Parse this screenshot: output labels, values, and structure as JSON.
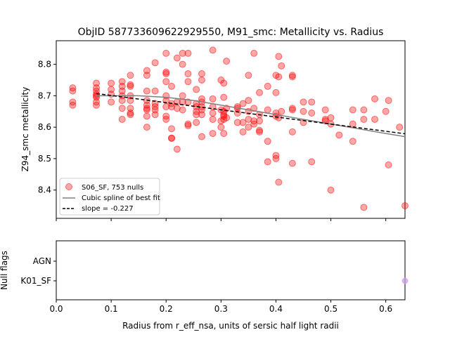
{
  "title": "ObjID 587733609622929550, M91_smc: Metallicity vs. Radius",
  "colors": {
    "scatter": "#ff0000",
    "spline": "#808080",
    "fit": "#000000",
    "null_point": "#c8a2e6"
  },
  "chart_data": [
    {
      "type": "scatter",
      "xlabel": "",
      "ylabel": "Z94_smc metallicity",
      "xlim": [
        0.0,
        0.635
      ],
      "ylim": [
        8.31,
        8.875
      ],
      "yticks": [
        8.4,
        8.5,
        8.6,
        8.7,
        8.8
      ],
      "ytick_labels": [
        "8.4",
        "8.5",
        "8.6",
        "8.7",
        "8.8"
      ],
      "legend": {
        "placement": "lower-left",
        "entries": [
          "S06_SF, 753 nulls",
          "Cubic spline of best fit",
          "slope = -0.227"
        ]
      },
      "series": [
        {
          "name": "S06_SF, 753 nulls",
          "style": "points",
          "points": [
            [
              0.03,
              8.725
            ],
            [
              0.03,
              8.715
            ],
            [
              0.03,
              8.68
            ],
            [
              0.03,
              8.67
            ],
            [
              0.073,
              8.74
            ],
            [
              0.073,
              8.725
            ],
            [
              0.073,
              8.715
            ],
            [
              0.073,
              8.705
            ],
            [
              0.073,
              8.7
            ],
            [
              0.073,
              8.695
            ],
            [
              0.073,
              8.68
            ],
            [
              0.073,
              8.67
            ],
            [
              0.1,
              8.74
            ],
            [
              0.1,
              8.72
            ],
            [
              0.1,
              8.705
            ],
            [
              0.1,
              8.68
            ],
            [
              0.12,
              8.745
            ],
            [
              0.12,
              8.73
            ],
            [
              0.12,
              8.715
            ],
            [
              0.12,
              8.7
            ],
            [
              0.12,
              8.685
            ],
            [
              0.12,
              8.66
            ],
            [
              0.12,
              8.625
            ],
            [
              0.135,
              8.765
            ],
            [
              0.135,
              8.735
            ],
            [
              0.135,
              8.73
            ],
            [
              0.135,
              8.7
            ],
            [
              0.135,
              8.685
            ],
            [
              0.135,
              8.66
            ],
            [
              0.135,
              8.645
            ],
            [
              0.135,
              8.64
            ],
            [
              0.165,
              8.78
            ],
            [
              0.165,
              8.765
            ],
            [
              0.165,
              8.715
            ],
            [
              0.165,
              8.685
            ],
            [
              0.165,
              8.67
            ],
            [
              0.165,
              8.66
            ],
            [
              0.165,
              8.655
            ],
            [
              0.165,
              8.635
            ],
            [
              0.165,
              8.6
            ],
            [
              0.18,
              8.805
            ],
            [
              0.18,
              8.715
            ],
            [
              0.18,
              8.675
            ],
            [
              0.18,
              8.665
            ],
            [
              0.18,
              8.655
            ],
            [
              0.18,
              8.64
            ],
            [
              0.2,
              8.835
            ],
            [
              0.2,
              8.775
            ],
            [
              0.2,
              8.77
            ],
            [
              0.2,
              8.745
            ],
            [
              0.2,
              8.7
            ],
            [
              0.2,
              8.685
            ],
            [
              0.2,
              8.665
            ],
            [
              0.2,
              8.635
            ],
            [
              0.2,
              8.625
            ],
            [
              0.21,
              8.73
            ],
            [
              0.21,
              8.675
            ],
            [
              0.21,
              8.665
            ],
            [
              0.21,
              8.595
            ],
            [
              0.21,
              8.565
            ],
            [
              0.21,
              8.565
            ],
            [
              0.22,
              8.82
            ],
            [
              0.22,
              8.68
            ],
            [
              0.22,
              8.66
            ],
            [
              0.22,
              8.53
            ],
            [
              0.23,
              8.835
            ],
            [
              0.23,
              8.8
            ],
            [
              0.23,
              8.7
            ],
            [
              0.23,
              8.68
            ],
            [
              0.23,
              8.655
            ],
            [
              0.24,
              8.835
            ],
            [
              0.24,
              8.77
            ],
            [
              0.24,
              8.745
            ],
            [
              0.24,
              8.68
            ],
            [
              0.24,
              8.61
            ],
            [
              0.24,
              8.605
            ],
            [
              0.255,
              8.72
            ],
            [
              0.255,
              8.675
            ],
            [
              0.255,
              8.665
            ],
            [
              0.255,
              8.65
            ],
            [
              0.255,
              8.64
            ],
            [
              0.255,
              8.615
            ],
            [
              0.265,
              8.77
            ],
            [
              0.265,
              8.75
            ],
            [
              0.265,
              8.69
            ],
            [
              0.265,
              8.68
            ],
            [
              0.265,
              8.665
            ],
            [
              0.265,
              8.655
            ],
            [
              0.265,
              8.64
            ],
            [
              0.265,
              8.57
            ],
            [
              0.285,
              8.845
            ],
            [
              0.285,
              8.69
            ],
            [
              0.285,
              8.665
            ],
            [
              0.285,
              8.645
            ],
            [
              0.285,
              8.625
            ],
            [
              0.285,
              8.58
            ],
            [
              0.3,
              8.75
            ],
            [
              0.3,
              8.655
            ],
            [
              0.3,
              8.62
            ],
            [
              0.3,
              8.6
            ],
            [
              0.305,
              8.74
            ],
            [
              0.305,
              8.695
            ],
            [
              0.305,
              8.65
            ],
            [
              0.305,
              8.64
            ],
            [
              0.305,
              8.635
            ],
            [
              0.305,
              8.625
            ],
            [
              0.305,
              8.58
            ],
            [
              0.31,
              8.81
            ],
            [
              0.31,
              8.66
            ],
            [
              0.31,
              8.63
            ],
            [
              0.33,
              8.665
            ],
            [
              0.33,
              8.66
            ],
            [
              0.33,
              8.645
            ],
            [
              0.33,
              8.615
            ],
            [
              0.34,
              8.675
            ],
            [
              0.34,
              8.615
            ],
            [
              0.34,
              8.585
            ],
            [
              0.35,
              8.765
            ],
            [
              0.35,
              8.685
            ],
            [
              0.35,
              8.65
            ],
            [
              0.35,
              8.625
            ],
            [
              0.35,
              8.6
            ],
            [
              0.36,
              8.835
            ],
            [
              0.36,
              8.66
            ],
            [
              0.36,
              8.62
            ],
            [
              0.36,
              8.61
            ],
            [
              0.37,
              8.71
            ],
            [
              0.37,
              8.64
            ],
            [
              0.37,
              8.62
            ],
            [
              0.37,
              8.59
            ],
            [
              0.37,
              8.585
            ],
            [
              0.385,
              8.73
            ],
            [
              0.385,
              8.655
            ],
            [
              0.385,
              8.555
            ],
            [
              0.385,
              8.49
            ],
            [
              0.4,
              8.765
            ],
            [
              0.4,
              8.71
            ],
            [
              0.4,
              8.645
            ],
            [
              0.4,
              8.635
            ],
            [
              0.4,
              8.51
            ],
            [
              0.4,
              8.5
            ],
            [
              0.405,
              8.825
            ],
            [
              0.405,
              8.76
            ],
            [
              0.405,
              8.63
            ],
            [
              0.405,
              8.425
            ],
            [
              0.41,
              8.795
            ],
            [
              0.41,
              8.65
            ],
            [
              0.43,
              8.765
            ],
            [
              0.43,
              8.76
            ],
            [
              0.43,
              8.66
            ],
            [
              0.43,
              8.655
            ],
            [
              0.43,
              8.585
            ],
            [
              0.43,
              8.485
            ],
            [
              0.45,
              8.68
            ],
            [
              0.45,
              8.65
            ],
            [
              0.45,
              8.615
            ],
            [
              0.465,
              8.68
            ],
            [
              0.465,
              8.645
            ],
            [
              0.465,
              8.49
            ],
            [
              0.49,
              8.655
            ],
            [
              0.49,
              8.625
            ],
            [
              0.49,
              8.62
            ],
            [
              0.5,
              8.63
            ],
            [
              0.5,
              8.61
            ],
            [
              0.5,
              8.4
            ],
            [
              0.515,
              8.575
            ],
            [
              0.54,
              8.655
            ],
            [
              0.54,
              8.61
            ],
            [
              0.54,
              8.555
            ],
            [
              0.56,
              8.655
            ],
            [
              0.56,
              8.625
            ],
            [
              0.56,
              8.345
            ],
            [
              0.58,
              8.69
            ],
            [
              0.58,
              8.625
            ],
            [
              0.6,
              8.65
            ],
            [
              0.605,
              8.685
            ],
            [
              0.605,
              8.48
            ],
            [
              0.625,
              8.6
            ],
            [
              0.635,
              8.35
            ]
          ]
        },
        {
          "name": "Cubic spline of best fit",
          "style": "line",
          "points": [
            [
              0.073,
              8.7
            ],
            [
              0.1,
              8.7
            ],
            [
              0.15,
              8.7
            ],
            [
              0.2,
              8.695
            ],
            [
              0.25,
              8.685
            ],
            [
              0.3,
              8.67
            ],
            [
              0.35,
              8.655
            ],
            [
              0.4,
              8.64
            ],
            [
              0.45,
              8.625
            ],
            [
              0.5,
              8.61
            ],
            [
              0.55,
              8.595
            ],
            [
              0.6,
              8.58
            ],
            [
              0.635,
              8.57
            ]
          ]
        },
        {
          "name": "slope = -0.227",
          "style": "dashed",
          "points": [
            [
              0.073,
              8.707
            ],
            [
              0.635,
              8.579
            ]
          ]
        }
      ]
    },
    {
      "type": "scatter",
      "xlabel": "Radius from r_eff_nsa, units of sersic half light radii",
      "ylabel": "Null flags",
      "xlim": [
        0.0,
        0.635
      ],
      "xticks": [
        0.0,
        0.1,
        0.2,
        0.3,
        0.4,
        0.5,
        0.6
      ],
      "xtick_labels": [
        "0.0",
        "0.1",
        "0.2",
        "0.3",
        "0.4",
        "0.5",
        "0.6"
      ],
      "categories": [
        "AGN",
        "K01_SF"
      ],
      "series": [
        {
          "style": "points",
          "points": [
            [
              0.635,
              "K01_SF"
            ]
          ]
        }
      ]
    }
  ]
}
